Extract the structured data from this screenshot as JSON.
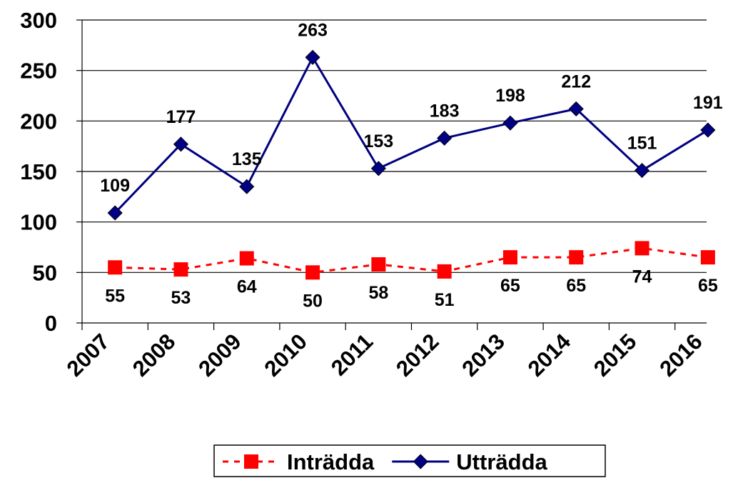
{
  "chart_data": {
    "type": "line",
    "categories": [
      "2007",
      "2008",
      "2009",
      "2010",
      "2011",
      "2012",
      "2013",
      "2014",
      "2015",
      "2016"
    ],
    "series": [
      {
        "name": "Inträdda",
        "color": "#ff0000",
        "marker": "square",
        "dashed": true,
        "values": [
          55,
          53,
          64,
          50,
          58,
          51,
          65,
          65,
          74,
          65
        ]
      },
      {
        "name": "Utträdda",
        "color": "#000080",
        "marker": "diamond",
        "dashed": false,
        "values": [
          109,
          177,
          135,
          263,
          153,
          183,
          198,
          212,
          151,
          191
        ]
      }
    ],
    "ylim": [
      0,
      300
    ],
    "yticks": [
      0,
      50,
      100,
      150,
      200,
      250,
      300
    ],
    "grid": true,
    "legend": "bottom"
  }
}
